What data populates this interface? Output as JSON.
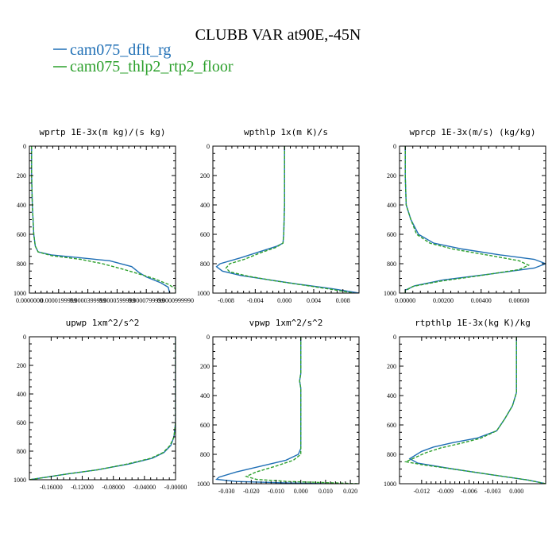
{
  "figure": {
    "title": "CLUBB VAR at90E,-45N",
    "legend": [
      {
        "label": "cam075_dflt_rg",
        "color": "#1f6fb5",
        "dash": "solid"
      },
      {
        "label": "cam075_thlp2_rtp2_floor",
        "color": "#2ca02c",
        "dash": "dashed"
      }
    ]
  },
  "chart_data": [
    {
      "type": "line",
      "title": "wprtp  1E-3x(m kg)/(s kg)",
      "xlim": [
        0.0,
        0.0001
      ],
      "ylim": [
        1000,
        0
      ],
      "xticks": [
        0.0,
        2e-05,
        4e-05,
        6e-05,
        8e-05,
        0.0001
      ],
      "xticklabels": [
        "0.0000000",
        "0.0000199999",
        "0.0000399999",
        "0.0000599999",
        "0.0000799999",
        "0.0000999990"
      ],
      "yticks": [
        0,
        200,
        400,
        600,
        800,
        1000
      ],
      "series": [
        {
          "name": "cam075_dflt_rg",
          "color": "#1f6fb5",
          "dash": "solid",
          "points": [
            [
              1.5e-06,
              0
            ],
            [
              1.5e-06,
              200
            ],
            [
              2e-06,
              400
            ],
            [
              3e-06,
              600
            ],
            [
              4e-06,
              680
            ],
            [
              6e-06,
              720
            ],
            [
              1.5e-05,
              740
            ],
            [
              3.5e-05,
              760
            ],
            [
              5.5e-05,
              780
            ],
            [
              7e-05,
              820
            ],
            [
              7.5e-05,
              860
            ],
            [
              8e-05,
              890
            ],
            [
              9e-05,
              930
            ],
            [
              9.5e-05,
              960
            ],
            [
              9.6e-05,
              1000
            ]
          ]
        },
        {
          "name": "cam075_thlp2_rtp2_floor",
          "color": "#2ca02c",
          "dash": "dashed",
          "points": [
            [
              1.5e-06,
              0
            ],
            [
              1.5e-06,
              200
            ],
            [
              2e-06,
              400
            ],
            [
              3e-06,
              600
            ],
            [
              4e-06,
              680
            ],
            [
              6e-06,
              720
            ],
            [
              1.5e-05,
              745
            ],
            [
              3.5e-05,
              770
            ],
            [
              5e-05,
              800
            ],
            [
              6.5e-05,
              840
            ],
            [
              7.5e-05,
              870
            ],
            [
              8.5e-05,
              900
            ],
            [
              9.5e-05,
              940
            ],
            [
              0.0001,
              970
            ],
            [
              0.0001,
              1000
            ]
          ]
        }
      ]
    },
    {
      "type": "line",
      "title": "wpthlp  1x(m K)/s",
      "xlim": [
        -0.0098,
        0.0102
      ],
      "ylim": [
        1000,
        0
      ],
      "xticks": [
        -0.008,
        -0.004,
        0.0,
        0.004,
        0.008
      ],
      "xticklabels": [
        "-0.008",
        "-0.004",
        "0.000",
        "0.004",
        "0.008"
      ],
      "yticks": [
        0,
        200,
        400,
        600,
        800,
        1000
      ],
      "series": [
        {
          "name": "cam075_dflt_rg",
          "color": "#1f6fb5",
          "dash": "solid",
          "points": [
            [
              0.0,
              0
            ],
            [
              0.0,
              200
            ],
            [
              0.0,
              400
            ],
            [
              -0.0001,
              600
            ],
            [
              -0.0002,
              660
            ],
            [
              -0.001,
              680
            ],
            [
              -0.0035,
              720
            ],
            [
              -0.006,
              760
            ],
            [
              -0.0088,
              800
            ],
            [
              -0.0093,
              820
            ],
            [
              -0.0085,
              850
            ],
            [
              -0.006,
              880
            ],
            [
              -0.002,
              910
            ],
            [
              0.002,
              940
            ],
            [
              0.0065,
              970
            ],
            [
              0.0102,
              1000
            ]
          ]
        },
        {
          "name": "cam075_thlp2_rtp2_floor",
          "color": "#2ca02c",
          "dash": "dashed",
          "points": [
            [
              0.0,
              0
            ],
            [
              0.0,
              200
            ],
            [
              0.0,
              400
            ],
            [
              -0.0001,
              600
            ],
            [
              -0.0002,
              660
            ],
            [
              -0.0012,
              690
            ],
            [
              -0.0035,
              730
            ],
            [
              -0.0055,
              770
            ],
            [
              -0.0075,
              800
            ],
            [
              -0.008,
              830
            ],
            [
              -0.0075,
              855
            ],
            [
              -0.005,
              885
            ],
            [
              -0.0015,
              915
            ],
            [
              0.0025,
              945
            ],
            [
              0.0065,
              975
            ],
            [
              0.0095,
              1000
            ]
          ]
        }
      ]
    },
    {
      "type": "line",
      "title": "wprcp  1E-3x(m/s) (kg/kg)",
      "xlim": [
        -0.0003,
        0.0074
      ],
      "ylim": [
        1000,
        0
      ],
      "xticks": [
        0.0,
        0.002,
        0.004,
        0.006
      ],
      "xticklabels": [
        "0.00000",
        "0.00200",
        "0.00400",
        "0.00600"
      ],
      "yticks": [
        0,
        200,
        400,
        600,
        800,
        1000
      ],
      "series": [
        {
          "name": "cam075_dflt_rg",
          "color": "#1f6fb5",
          "dash": "solid",
          "points": [
            [
              0.0,
              0
            ],
            [
              0.0,
              200
            ],
            [
              5e-05,
              400
            ],
            [
              0.0003,
              500
            ],
            [
              0.0007,
              600
            ],
            [
              0.0015,
              660
            ],
            [
              0.003,
              700
            ],
            [
              0.005,
              740
            ],
            [
              0.0068,
              770
            ],
            [
              0.0074,
              800
            ],
            [
              0.0068,
              830
            ],
            [
              0.0045,
              870
            ],
            [
              0.002,
              910
            ],
            [
              0.0005,
              950
            ],
            [
              0.0,
              980
            ],
            [
              0.0,
              1000
            ]
          ]
        },
        {
          "name": "cam075_thlp2_rtp2_floor",
          "color": "#2ca02c",
          "dash": "dashed",
          "points": [
            [
              0.0,
              0
            ],
            [
              0.0,
              200
            ],
            [
              5e-05,
              400
            ],
            [
              0.0003,
              500
            ],
            [
              0.0006,
              600
            ],
            [
              0.0013,
              660
            ],
            [
              0.0025,
              700
            ],
            [
              0.0045,
              745
            ],
            [
              0.006,
              780
            ],
            [
              0.0065,
              810
            ],
            [
              0.006,
              840
            ],
            [
              0.004,
              880
            ],
            [
              0.0018,
              920
            ],
            [
              0.0004,
              955
            ],
            [
              0.0,
              985
            ],
            [
              0.0,
              1000
            ]
          ]
        }
      ]
    },
    {
      "type": "line",
      "title": "upwp  1xm^2/s^2",
      "xlim": [
        -0.188,
        0.0
      ],
      "ylim": [
        1000,
        0
      ],
      "xticks": [
        -0.16,
        -0.12,
        -0.08,
        -0.04,
        0.0
      ],
      "xticklabels": [
        "-0.16000",
        "-0.12000",
        "-0.08000",
        "-0.04000",
        "-0.00000"
      ],
      "yticks": [
        0,
        200,
        400,
        600,
        800,
        1000
      ],
      "series": [
        {
          "name": "cam075_dflt_rg",
          "color": "#1f6fb5",
          "dash": "solid",
          "points": [
            [
              0.0,
              0
            ],
            [
              0.0,
              200
            ],
            [
              0.0,
              400
            ],
            [
              0.0,
              600
            ],
            [
              -0.002,
              700
            ],
            [
              -0.006,
              760
            ],
            [
              -0.015,
              810
            ],
            [
              -0.03,
              850
            ],
            [
              -0.06,
              890
            ],
            [
              -0.1,
              930
            ],
            [
              -0.14,
              960
            ],
            [
              -0.17,
              985
            ],
            [
              -0.188,
              1000
            ]
          ]
        },
        {
          "name": "cam075_thlp2_rtp2_floor",
          "color": "#2ca02c",
          "dash": "dashed",
          "points": [
            [
              0.0,
              0
            ],
            [
              0.0,
              200
            ],
            [
              0.0,
              400
            ],
            [
              0.0,
              600
            ],
            [
              -0.002,
              700
            ],
            [
              -0.007,
              760
            ],
            [
              -0.016,
              810
            ],
            [
              -0.032,
              850
            ],
            [
              -0.062,
              890
            ],
            [
              -0.1,
              930
            ],
            [
              -0.14,
              960
            ],
            [
              -0.17,
              985
            ],
            [
              -0.188,
              1000
            ]
          ]
        }
      ]
    },
    {
      "type": "line",
      "title": "vpwp  1xm^2/s^2",
      "xlim": [
        -0.0355,
        0.0235
      ],
      "ylim": [
        1000,
        0
      ],
      "xticks": [
        -0.03,
        -0.02,
        -0.01,
        0.0,
        0.01,
        0.02
      ],
      "xticklabels": [
        "-0.030",
        "-0.020",
        "-0.010",
        "0.000",
        "0.010",
        "0.020"
      ],
      "yticks": [
        0,
        200,
        400,
        600,
        800,
        1000
      ],
      "series": [
        {
          "name": "cam075_dflt_rg",
          "color": "#1f6fb5",
          "dash": "solid",
          "points": [
            [
              0.0,
              0
            ],
            [
              0.0,
              150
            ],
            [
              0.0,
              250
            ],
            [
              -0.0005,
              300
            ],
            [
              0.0,
              350
            ],
            [
              0.0,
              500
            ],
            [
              0.0,
              650
            ],
            [
              0.0,
              760
            ],
            [
              -0.001,
              800
            ],
            [
              -0.006,
              840
            ],
            [
              -0.016,
              880
            ],
            [
              -0.026,
              920
            ],
            [
              -0.033,
              955
            ],
            [
              -0.034,
              970
            ],
            [
              -0.026,
              985
            ],
            [
              -0.005,
              995
            ],
            [
              0.01,
              1000
            ]
          ]
        },
        {
          "name": "cam075_thlp2_rtp2_floor",
          "color": "#2ca02c",
          "dash": "dashed",
          "points": [
            [
              0.0,
              0
            ],
            [
              0.0,
              150
            ],
            [
              0.0,
              250
            ],
            [
              -0.0005,
              300
            ],
            [
              0.0,
              350
            ],
            [
              0.0,
              500
            ],
            [
              0.0,
              650
            ],
            [
              0.0,
              760
            ],
            [
              0.0,
              800
            ],
            [
              -0.003,
              840
            ],
            [
              -0.01,
              880
            ],
            [
              -0.018,
              920
            ],
            [
              -0.022,
              950
            ],
            [
              -0.018,
              970
            ],
            [
              -0.005,
              985
            ],
            [
              0.015,
              995
            ],
            [
              0.023,
              1000
            ]
          ]
        }
      ]
    },
    {
      "type": "line",
      "title": "rtpthlp  1E-3x(kg K)/kg",
      "xlim": [
        -0.0148,
        0.0037
      ],
      "ylim": [
        1000,
        0
      ],
      "xticks": [
        -0.012,
        -0.009,
        -0.006,
        -0.003,
        0.0
      ],
      "xticklabels": [
        "-0.012",
        "-0.009",
        "-0.006",
        "-0.003",
        "0.000"
      ],
      "yticks": [
        0,
        200,
        400,
        600,
        800,
        1000
      ],
      "series": [
        {
          "name": "cam075_dflt_rg",
          "color": "#1f6fb5",
          "dash": "solid",
          "points": [
            [
              0.0,
              0
            ],
            [
              0.0,
              200
            ],
            [
              0.0,
              380
            ],
            [
              -0.0005,
              470
            ],
            [
              -0.0015,
              560
            ],
            [
              -0.0025,
              640
            ],
            [
              -0.005,
              690
            ],
            [
              -0.008,
              720
            ],
            [
              -0.0105,
              750
            ],
            [
              -0.012,
              780
            ],
            [
              -0.0135,
              830
            ],
            [
              -0.0125,
              860
            ],
            [
              -0.008,
              900
            ],
            [
              -0.003,
              940
            ],
            [
              0.0015,
              975
            ],
            [
              0.0037,
              1000
            ]
          ]
        },
        {
          "name": "cam075_thlp2_rtp2_floor",
          "color": "#2ca02c",
          "dash": "dashed",
          "points": [
            [
              0.0,
              0
            ],
            [
              0.0,
              200
            ],
            [
              0.0,
              380
            ],
            [
              -0.0005,
              470
            ],
            [
              -0.0015,
              560
            ],
            [
              -0.0025,
              640
            ],
            [
              -0.0045,
              690
            ],
            [
              -0.007,
              725
            ],
            [
              -0.0095,
              755
            ],
            [
              -0.0115,
              790
            ],
            [
              -0.014,
              850
            ],
            [
              -0.012,
              870
            ],
            [
              -0.008,
              900
            ],
            [
              -0.003,
              940
            ],
            [
              0.0015,
              975
            ],
            [
              0.0037,
              1000
            ]
          ]
        }
      ]
    }
  ]
}
